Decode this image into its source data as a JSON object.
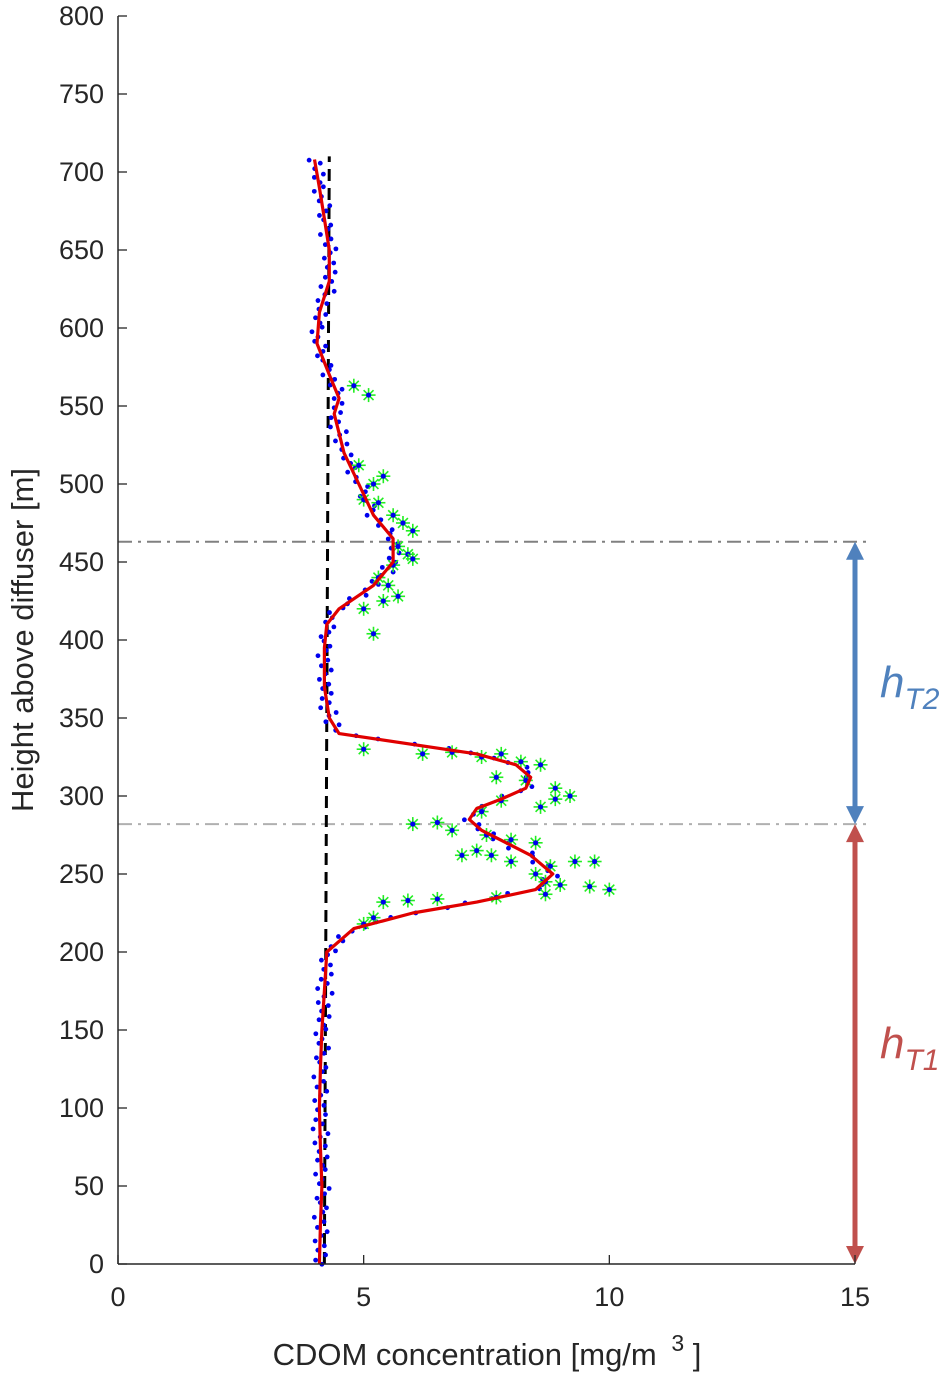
{
  "chart_data": {
    "type": "scatter",
    "title": "",
    "xlabel": "CDOM concentration [mg/m",
    "xlabel_superscript": "3",
    "xlabel_suffix": "]",
    "ylabel": "Height above diffuser [m]",
    "xlim": [
      0,
      15
    ],
    "ylim": [
      0,
      800
    ],
    "x_ticks": [
      0,
      5,
      10,
      15
    ],
    "x_tick_labels": [
      "0",
      "5",
      "10",
      "15"
    ],
    "y_ticks": [
      0,
      50,
      100,
      150,
      200,
      250,
      300,
      350,
      400,
      450,
      500,
      550,
      600,
      650,
      700,
      750,
      800
    ],
    "y_tick_labels": [
      "0",
      "50",
      "100",
      "150",
      "200",
      "250",
      "300",
      "350",
      "400",
      "450",
      "500",
      "550",
      "600",
      "650",
      "700",
      "750",
      "800"
    ],
    "grid": false,
    "colors": {
      "points": "#0000ee",
      "flagged_marker": "#22ee22",
      "smooth_line": "#e00000",
      "background_line": "#000000",
      "upper_dashdot": "#808080",
      "lower_dashdot": "#b0b0b0",
      "hT1": "#c0504d",
      "hT2": "#4f81bd"
    },
    "background_profile": {
      "x": [
        4.2,
        4.3
      ],
      "y": [
        0,
        710
      ]
    },
    "smooth_profile": {
      "x": [
        4.1,
        4.12,
        4.15,
        4.12,
        4.1,
        4.12,
        4.15,
        4.2,
        4.25,
        4.8,
        6.0,
        7.3,
        8.5,
        8.85,
        8.4,
        7.9,
        7.4,
        7.15,
        7.3,
        7.8,
        8.3,
        8.4,
        8.1,
        7.3,
        4.5,
        4.3,
        4.2,
        4.2,
        4.25,
        4.5,
        5.2,
        5.6,
        5.6,
        5.2,
        4.9,
        4.6,
        4.4,
        4.5,
        4.3,
        4.05,
        4.1,
        4.3,
        4.3,
        4.2,
        4.1,
        4.0
      ],
      "y": [
        0,
        25,
        50,
        75,
        100,
        125,
        150,
        175,
        200,
        215,
        225,
        232,
        240,
        250,
        262,
        270,
        278,
        285,
        292,
        298,
        305,
        312,
        320,
        327,
        340,
        350,
        370,
        395,
        410,
        420,
        435,
        450,
        465,
        480,
        500,
        520,
        545,
        555,
        570,
        590,
        610,
        630,
        650,
        670,
        690,
        708
      ]
    },
    "threshold_heights": [
      463,
      282
    ],
    "annotations": [
      {
        "name": "hT2",
        "label": "h",
        "subscript": "T2",
        "from": 282,
        "to": 463
      },
      {
        "name": "hT1",
        "label": "h",
        "subscript": "T1",
        "from": 0,
        "to": 282
      }
    ],
    "flagged_points": [
      [
        4.8,
        563
      ],
      [
        5.1,
        557
      ],
      [
        4.9,
        512
      ],
      [
        5.2,
        500
      ],
      [
        5.4,
        505
      ],
      [
        5.0,
        490
      ],
      [
        5.3,
        488
      ],
      [
        5.6,
        480
      ],
      [
        5.8,
        475
      ],
      [
        6.0,
        470
      ],
      [
        5.7,
        460
      ],
      [
        5.9,
        455
      ],
      [
        5.6,
        448
      ],
      [
        6.0,
        452
      ],
      [
        5.3,
        440
      ],
      [
        5.5,
        435
      ],
      [
        5.4,
        425
      ],
      [
        5.7,
        428
      ],
      [
        5.2,
        404
      ],
      [
        5.0,
        420
      ],
      [
        5.0,
        330
      ],
      [
        6.2,
        327
      ],
      [
        6.8,
        328
      ],
      [
        7.4,
        325
      ],
      [
        7.8,
        327
      ],
      [
        8.2,
        322
      ],
      [
        8.6,
        320
      ],
      [
        8.3,
        310
      ],
      [
        7.7,
        312
      ],
      [
        8.9,
        305
      ],
      [
        9.2,
        300
      ],
      [
        8.9,
        298
      ],
      [
        8.6,
        293
      ],
      [
        7.8,
        297
      ],
      [
        7.4,
        290
      ],
      [
        6.5,
        283
      ],
      [
        6.0,
        282
      ],
      [
        6.8,
        278
      ],
      [
        7.5,
        275
      ],
      [
        8.0,
        272
      ],
      [
        8.5,
        270
      ],
      [
        7.3,
        265
      ],
      [
        7.0,
        262
      ],
      [
        7.6,
        262
      ],
      [
        8.0,
        258
      ],
      [
        8.8,
        255
      ],
      [
        9.3,
        258
      ],
      [
        9.7,
        258
      ],
      [
        8.5,
        250
      ],
      [
        8.7,
        245
      ],
      [
        9.0,
        243
      ],
      [
        9.6,
        242
      ],
      [
        10.0,
        240
      ],
      [
        8.7,
        237
      ],
      [
        7.7,
        235
      ],
      [
        6.5,
        234
      ],
      [
        5.9,
        233
      ],
      [
        5.4,
        232
      ],
      [
        5.2,
        222
      ],
      [
        5.0,
        218
      ]
    ],
    "point_rows": {
      "y0": 0,
      "y1": 710,
      "step": 3,
      "offsets": [
        0.05,
        -0.08,
        0.12,
        -0.04,
        0.09,
        -0.1,
        0.02,
        0.14,
        -0.06,
        0.07,
        -0.13,
        0.04,
        0.11,
        -0.02,
        -0.09,
        0.06,
        0.15,
        -0.05,
        0.01,
        -0.12,
        0.08,
        0.03,
        -0.07,
        0.13,
        -0.03,
        0.1,
        -0.11,
        0.0,
        0.16,
        -0.14
      ]
    }
  }
}
